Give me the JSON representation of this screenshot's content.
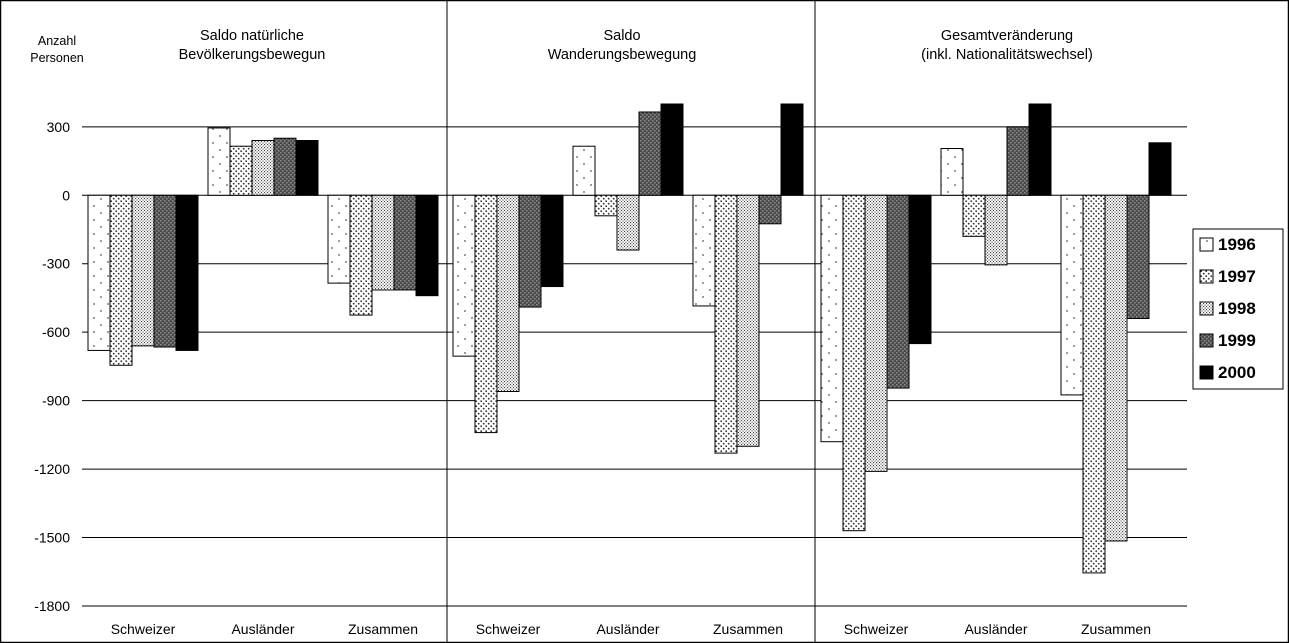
{
  "colors": {
    "background": "#ffffff",
    "frame": "#000000",
    "gridline": "#000000",
    "y1996": "#ffffff",
    "y1997": "#ffffff",
    "y1998": "#ffffff",
    "y1999": "#555555",
    "y2000": "#000000"
  },
  "chart_data": {
    "type": "bar",
    "ylabel": "Anzahl Personen",
    "ylabel_lines": [
      "Anzahl",
      "Personen"
    ],
    "ylim": [
      -1800,
      400
    ],
    "yticks": [
      300,
      0,
      -300,
      -600,
      -900,
      -1200,
      -1500,
      -1800
    ],
    "grid": true,
    "legend_position": "right",
    "legend": [
      "1996",
      "1997",
      "1998",
      "1999",
      "2000"
    ],
    "panels": [
      {
        "title_lines": [
          "Saldo natürliche",
          "Bevölkerungsbewegun"
        ],
        "categories": [
          "Schweizer",
          "Ausländer",
          "Zusammen"
        ],
        "series": [
          {
            "name": "1996",
            "values": [
              -680,
              295,
              -385
            ]
          },
          {
            "name": "1997",
            "values": [
              -745,
              215,
              -525
            ]
          },
          {
            "name": "1998",
            "values": [
              -660,
              240,
              -415
            ]
          },
          {
            "name": "1999",
            "values": [
              -665,
              250,
              -415
            ]
          },
          {
            "name": "2000",
            "values": [
              -680,
              240,
              -440
            ]
          }
        ]
      },
      {
        "title_lines": [
          "Saldo",
          "Wanderungsbewegung"
        ],
        "categories": [
          "Schweizer",
          "Ausländer",
          "Zusammen"
        ],
        "series": [
          {
            "name": "1996",
            "values": [
              -705,
              215,
              -485
            ]
          },
          {
            "name": "1997",
            "values": [
              -1040,
              -90,
              -1130
            ]
          },
          {
            "name": "1998",
            "values": [
              -860,
              -240,
              -1100
            ]
          },
          {
            "name": "1999",
            "values": [
              -490,
              365,
              -125
            ]
          },
          {
            "name": "2000",
            "values": [
              -400,
              420,
              420
            ]
          }
        ]
      },
      {
        "title_lines": [
          "Gesamtveränderung",
          "(inkl. Nationalitätswechsel)"
        ],
        "categories": [
          "Schweizer",
          "Ausländer",
          "Zusammen"
        ],
        "series": [
          {
            "name": "1996",
            "values": [
              -1080,
              205,
              -875
            ]
          },
          {
            "name": "1997",
            "values": [
              -1470,
              -180,
              -1655
            ]
          },
          {
            "name": "1998",
            "values": [
              -1210,
              -305,
              -1515
            ]
          },
          {
            "name": "1999",
            "values": [
              -845,
              300,
              -540
            ]
          },
          {
            "name": "2000",
            "values": [
              -650,
              420,
              230
            ]
          }
        ]
      }
    ]
  }
}
